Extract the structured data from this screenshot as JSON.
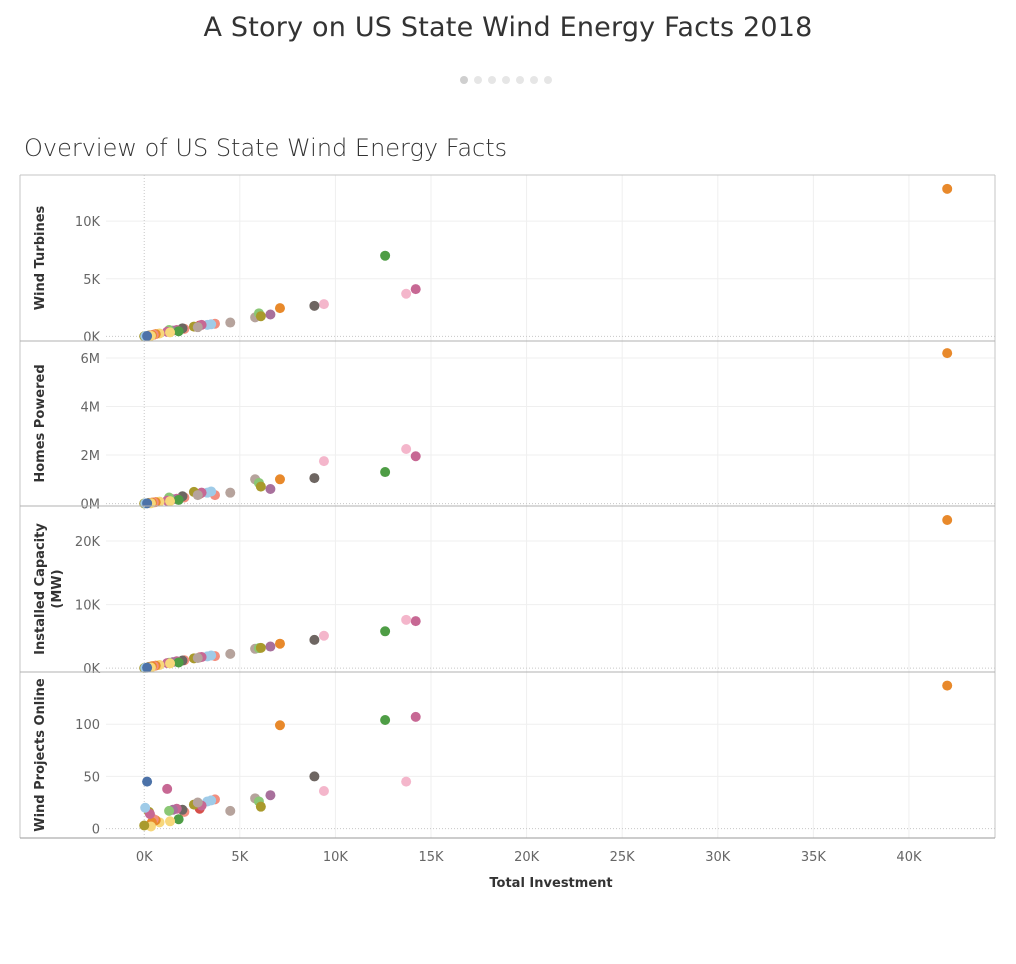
{
  "story": {
    "title": "A Story on US State Wind Energy Facts 2018",
    "nav_points": 7,
    "active_point": 0
  },
  "sheet": {
    "title": "Overview of US State Wind Energy Facts"
  },
  "chart_data": {
    "type": "scatter",
    "title": "Overview of US State Wind Energy Facts",
    "xlabel": "Total Investment",
    "xlim": [
      -2000,
      44500
    ],
    "x_ticks": [
      0,
      5000,
      10000,
      15000,
      20000,
      25000,
      30000,
      35000,
      40000
    ],
    "x_tick_labels": [
      "0K",
      "5K",
      "10K",
      "15K",
      "20K",
      "25K",
      "30K",
      "35K",
      "40K"
    ],
    "grid": true,
    "rows": [
      {
        "label": "Wind Turbines",
        "ylim": [
          -400,
          14000
        ],
        "y_ticks": [
          0,
          5000,
          10000
        ],
        "y_tick_labels": [
          "0K",
          "5K",
          "10K"
        ]
      },
      {
        "label": "Homes Powered",
        "ylim": [
          -100000,
          6700000
        ],
        "y_ticks": [
          0,
          2000000,
          4000000,
          6000000
        ],
        "y_tick_labels": [
          "0M",
          "2M",
          "4M",
          "6M"
        ]
      },
      {
        "label": "Installed Capacity (MW)",
        "ylim": [
          -600,
          25500
        ],
        "y_ticks": [
          0,
          10000,
          20000
        ],
        "y_tick_labels": [
          "0K",
          "10K",
          "20K"
        ]
      },
      {
        "label": "Wind Projects Online",
        "ylim": [
          -9,
          150
        ],
        "y_ticks": [
          0,
          50,
          100
        ],
        "y_tick_labels": [
          "0",
          "50",
          "100"
        ]
      }
    ],
    "points": [
      {
        "color": "#e8892b",
        "x": 42000,
        "y": [
          12800,
          6200000,
          23300,
          137
        ]
      },
      {
        "color": "#4e9d45",
        "x": 12600,
        "y": [
          7000,
          1300000,
          5800,
          104
        ]
      },
      {
        "color": "#c76894",
        "x": 14200,
        "y": [
          4100,
          1950000,
          7400,
          107
        ]
      },
      {
        "color": "#f4b6cb",
        "x": 13700,
        "y": [
          3700,
          2250000,
          7600,
          45
        ]
      },
      {
        "color": "#f4b6cb",
        "x": 9400,
        "y": [
          2800,
          1750000,
          5100,
          36
        ]
      },
      {
        "color": "#6e6662",
        "x": 8900,
        "y": [
          2650,
          1050000,
          4450,
          50
        ]
      },
      {
        "color": "#e8892b",
        "x": 7100,
        "y": [
          2450,
          1000000,
          3850,
          99
        ]
      },
      {
        "color": "#a8709c",
        "x": 6600,
        "y": [
          1900,
          600000,
          3400,
          32
        ]
      },
      {
        "color": "#b6a39c",
        "x": 5800,
        "y": [
          1650,
          1000000,
          3050,
          29
        ]
      },
      {
        "color": "#8bc775",
        "x": 6000,
        "y": [
          2000,
          850000,
          3150,
          26
        ]
      },
      {
        "color": "#a99a2c",
        "x": 6100,
        "y": [
          1750,
          700000,
          3200,
          21
        ]
      },
      {
        "color": "#b6a39c",
        "x": 4500,
        "y": [
          1200,
          450000,
          2250,
          17
        ]
      },
      {
        "color": "#f28e7f",
        "x": 3700,
        "y": [
          1100,
          350000,
          1900,
          28
        ]
      },
      {
        "color": "#9fcbe8",
        "x": 3500,
        "y": [
          1050,
          500000,
          2000,
          27
        ]
      },
      {
        "color": "#9fcbe8",
        "x": 3300,
        "y": [
          1000,
          450000,
          1850,
          26
        ]
      },
      {
        "color": "#d64f4a",
        "x": 2900,
        "y": [
          950,
          400000,
          1700,
          19
        ]
      },
      {
        "color": "#c76894",
        "x": 3000,
        "y": [
          1000,
          450000,
          1750,
          22
        ]
      },
      {
        "color": "#a99a2c",
        "x": 2600,
        "y": [
          850,
          480000,
          1550,
          23
        ]
      },
      {
        "color": "#b6a39c",
        "x": 2800,
        "y": [
          800,
          350000,
          1600,
          25
        ]
      },
      {
        "color": "#f28e7f",
        "x": 2100,
        "y": [
          650,
          250000,
          1250,
          16
        ]
      },
      {
        "color": "#6e6662",
        "x": 2000,
        "y": [
          700,
          300000,
          1200,
          18
        ]
      },
      {
        "color": "#c76894",
        "x": 1700,
        "y": [
          550,
          200000,
          1100,
          19
        ]
      },
      {
        "color": "#a8709c",
        "x": 1500,
        "y": [
          500,
          180000,
          950,
          18
        ]
      },
      {
        "color": "#8bc775",
        "x": 1300,
        "y": [
          550,
          250000,
          850,
          17
        ]
      },
      {
        "color": "#4e9d45",
        "x": 1800,
        "y": [
          450,
          150000,
          900,
          9
        ]
      },
      {
        "color": "#c76894",
        "x": 1200,
        "y": [
          400,
          120000,
          800,
          38
        ]
      },
      {
        "color": "#f7d77b",
        "x": 1350,
        "y": [
          350,
          100000,
          750,
          7
        ]
      },
      {
        "color": "#f7d77b",
        "x": 800,
        "y": [
          250,
          80000,
          500,
          6
        ]
      },
      {
        "color": "#e8892b",
        "x": 600,
        "y": [
          200,
          60000,
          400,
          8
        ]
      },
      {
        "color": "#f28e7f",
        "x": 500,
        "y": [
          150,
          50000,
          350,
          9
        ]
      },
      {
        "color": "#e8892b",
        "x": 400,
        "y": [
          100,
          40000,
          300,
          6
        ]
      },
      {
        "color": "#a99a2c",
        "x": 250,
        "y": [
          80,
          30000,
          200,
          16
        ]
      },
      {
        "color": "#c76894",
        "x": 300,
        "y": [
          60,
          20000,
          150,
          14
        ]
      },
      {
        "color": "#f7d77b",
        "x": 350,
        "y": [
          50,
          15000,
          100,
          2
        ]
      },
      {
        "color": "#a99a2c",
        "x": 0,
        "y": [
          10,
          5000,
          30,
          3
        ]
      },
      {
        "color": "#9fcbe8",
        "x": 50,
        "y": [
          20,
          8000,
          50,
          20
        ]
      },
      {
        "color": "#4c72a8",
        "x": 150,
        "y": [
          30,
          10000,
          80,
          45
        ]
      }
    ]
  }
}
